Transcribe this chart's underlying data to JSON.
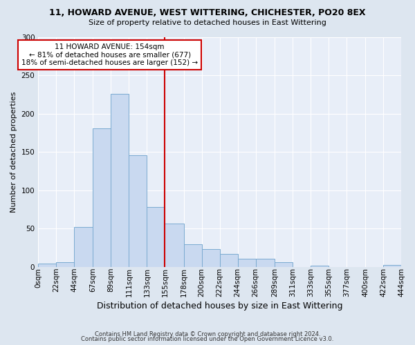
{
  "title": "11, HOWARD AVENUE, WEST WITTERING, CHICHESTER, PO20 8EX",
  "subtitle": "Size of property relative to detached houses in East Wittering",
  "xlabel": "Distribution of detached houses by size in East Wittering",
  "ylabel": "Number of detached properties",
  "footer_line1": "Contains HM Land Registry data © Crown copyright and database right 2024.",
  "footer_line2": "Contains public sector information licensed under the Open Government Licence v3.0.",
  "bin_edges": [
    0,
    22,
    44,
    67,
    89,
    111,
    133,
    155,
    178,
    200,
    222,
    244,
    266,
    289,
    311,
    333,
    355,
    377,
    400,
    422,
    444
  ],
  "bin_labels": [
    "0sqm",
    "22sqm",
    "44sqm",
    "67sqm",
    "89sqm",
    "111sqm",
    "133sqm",
    "155sqm",
    "178sqm",
    "200sqm",
    "222sqm",
    "244sqm",
    "266sqm",
    "289sqm",
    "311sqm",
    "333sqm",
    "355sqm",
    "377sqm",
    "400sqm",
    "422sqm",
    "444sqm"
  ],
  "counts": [
    4,
    6,
    52,
    181,
    226,
    146,
    78,
    56,
    29,
    23,
    17,
    10,
    10,
    6,
    0,
    1,
    0,
    0,
    0,
    2
  ],
  "bar_facecolor": "#c9d9f0",
  "bar_edgecolor": "#7aaad0",
  "vline_color": "#cc0000",
  "vline_x": 155,
  "annotation_title": "11 HOWARD AVENUE: 154sqm",
  "annotation_line1": "← 81% of detached houses are smaller (677)",
  "annotation_line2": "18% of semi-detached houses are larger (152) →",
  "annotation_box_edgecolor": "#cc0000",
  "annotation_box_facecolor": "#ffffff",
  "ylim": [
    0,
    300
  ],
  "yticks": [
    0,
    50,
    100,
    150,
    200,
    250,
    300
  ],
  "bg_color": "#dde6f0",
  "plot_bg_color": "#e8eef8",
  "grid_color": "#ffffff",
  "title_fontsize": 9,
  "subtitle_fontsize": 8,
  "xlabel_fontsize": 9,
  "ylabel_fontsize": 8,
  "tick_fontsize": 7.5,
  "footer_fontsize": 6
}
